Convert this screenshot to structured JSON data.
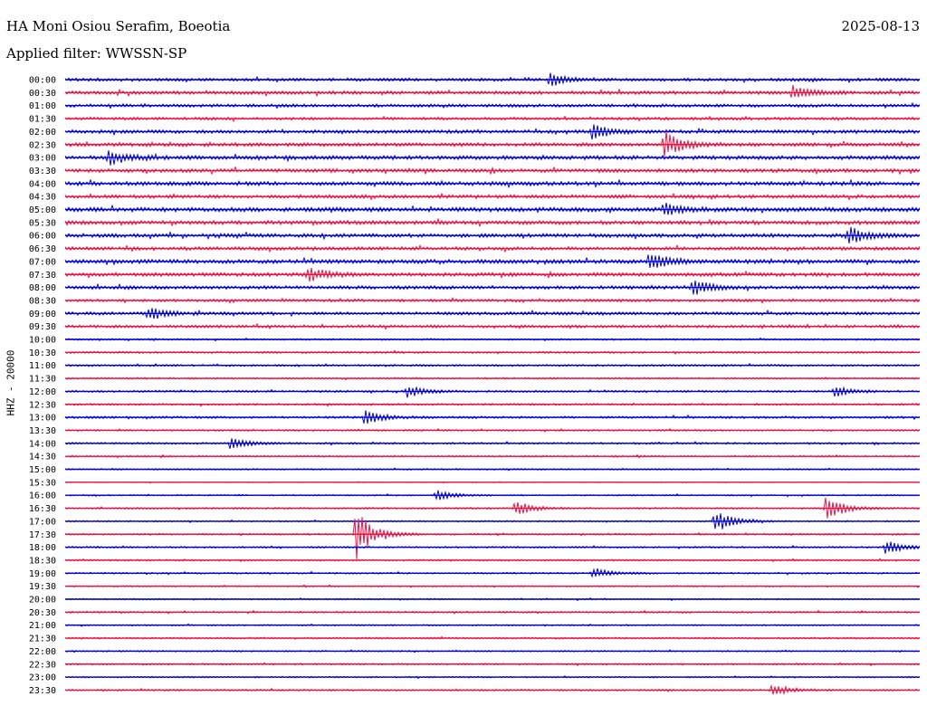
{
  "header": {
    "station": "HA Moni Osiou Serafim, Boeotia",
    "date": "2025-08-13",
    "filter": "Applied filter: WWSSN-SP",
    "channel": "HHZ - 20000"
  },
  "colors": {
    "even_trace": "#0000dd",
    "odd_trace": "#ee1144",
    "text": "#000000",
    "background": "#ffffff"
  },
  "chart_data": {
    "type": "line",
    "title": "HA Moni Osiou Serafim, Boeotia",
    "ylabel": "HHZ - 20000",
    "row_interval_minutes": 30,
    "row_labels": [
      "00:00",
      "00:30",
      "01:00",
      "01:30",
      "02:00",
      "02:30",
      "03:00",
      "03:30",
      "04:00",
      "04:30",
      "05:00",
      "05:30",
      "06:00",
      "06:30",
      "07:00",
      "07:30",
      "08:00",
      "08:30",
      "09:00",
      "09:30",
      "10:00",
      "10:30",
      "11:00",
      "11:30",
      "12:00",
      "12:30",
      "13:00",
      "13:30",
      "14:00",
      "14:30",
      "15:00",
      "15:30",
      "16:00",
      "16:30",
      "17:00",
      "17:30",
      "18:00",
      "18:30",
      "19:00",
      "19:30",
      "20:00",
      "20:30",
      "21:00",
      "21:30",
      "22:00",
      "22:30",
      "23:00",
      "23:30"
    ],
    "row_noise_level": [
      0.55,
      0.6,
      0.55,
      0.5,
      0.6,
      0.65,
      0.7,
      0.65,
      0.7,
      0.6,
      0.75,
      0.7,
      0.65,
      0.6,
      0.7,
      0.65,
      0.6,
      0.5,
      0.55,
      0.5,
      0.3,
      0.35,
      0.35,
      0.3,
      0.35,
      0.35,
      0.4,
      0.3,
      0.35,
      0.3,
      0.25,
      0.15,
      0.25,
      0.3,
      0.25,
      0.3,
      0.3,
      0.3,
      0.3,
      0.25,
      0.25,
      0.3,
      0.25,
      0.3,
      0.25,
      0.3,
      0.25,
      0.3
    ],
    "events": [
      {
        "row": "00:00",
        "minute": 17.0,
        "amplitude": 0.8
      },
      {
        "row": "00:30",
        "minute": 25.5,
        "amplitude": 1.0
      },
      {
        "row": "02:00",
        "minute": 18.5,
        "amplitude": 1.0
      },
      {
        "row": "02:30",
        "minute": 21.0,
        "amplitude": 1.9
      },
      {
        "row": "03:00",
        "minute": 1.5,
        "amplitude": 1.0
      },
      {
        "row": "05:00",
        "minute": 21.0,
        "amplitude": 0.9
      },
      {
        "row": "06:00",
        "minute": 27.5,
        "amplitude": 1.1
      },
      {
        "row": "07:00",
        "minute": 20.5,
        "amplitude": 1.2
      },
      {
        "row": "07:30",
        "minute": 8.5,
        "amplitude": 1.0
      },
      {
        "row": "08:00",
        "minute": 22.0,
        "amplitude": 1.1
      },
      {
        "row": "09:00",
        "minute": 2.9,
        "amplitude": 0.8
      },
      {
        "row": "12:00",
        "minute": 12.0,
        "amplitude": 0.8
      },
      {
        "row": "12:00",
        "minute": 27.0,
        "amplitude": 0.7
      },
      {
        "row": "13:00",
        "minute": 10.5,
        "amplitude": 1.0
      },
      {
        "row": "14:00",
        "minute": 5.8,
        "amplitude": 0.8
      },
      {
        "row": "16:00",
        "minute": 13.0,
        "amplitude": 0.7
      },
      {
        "row": "16:30",
        "minute": 15.8,
        "amplitude": 1.0
      },
      {
        "row": "16:30",
        "minute": 26.7,
        "amplitude": 1.7
      },
      {
        "row": "17:00",
        "minute": 22.8,
        "amplitude": 1.6
      },
      {
        "row": "17:30",
        "minute": 10.2,
        "amplitude": 3.3
      },
      {
        "row": "18:00",
        "minute": 28.8,
        "amplitude": 0.9
      },
      {
        "row": "19:00",
        "minute": 18.5,
        "amplitude": 0.7
      },
      {
        "row": "23:30",
        "minute": 24.8,
        "amplitude": 0.8
      }
    ]
  }
}
